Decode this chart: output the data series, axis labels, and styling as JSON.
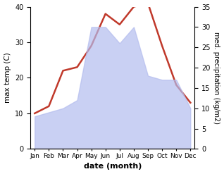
{
  "months": [
    "Jan",
    "Feb",
    "Mar",
    "Apr",
    "May",
    "Jun",
    "Jul",
    "Aug",
    "Sep",
    "Oct",
    "Nov",
    "Dec"
  ],
  "temperature": [
    10,
    12,
    22,
    23,
    29,
    38,
    35,
    40,
    41,
    29,
    18,
    13
  ],
  "precipitation": [
    8,
    9,
    10,
    12,
    30,
    30,
    26,
    30,
    18,
    17,
    17,
    10
  ],
  "temp_color": "#c0392b",
  "precip_color": "#b3bcee",
  "temp_ylim": [
    0,
    40
  ],
  "precip_ylim": [
    0,
    35
  ],
  "temp_yticks": [
    0,
    10,
    20,
    30,
    40
  ],
  "precip_yticks": [
    0,
    5,
    10,
    15,
    20,
    25,
    30,
    35
  ],
  "xlabel": "date (month)",
  "ylabel_left": "max temp (C)",
  "ylabel_right": "med. precipitation (kg/m2)",
  "background_color": "#ffffff"
}
